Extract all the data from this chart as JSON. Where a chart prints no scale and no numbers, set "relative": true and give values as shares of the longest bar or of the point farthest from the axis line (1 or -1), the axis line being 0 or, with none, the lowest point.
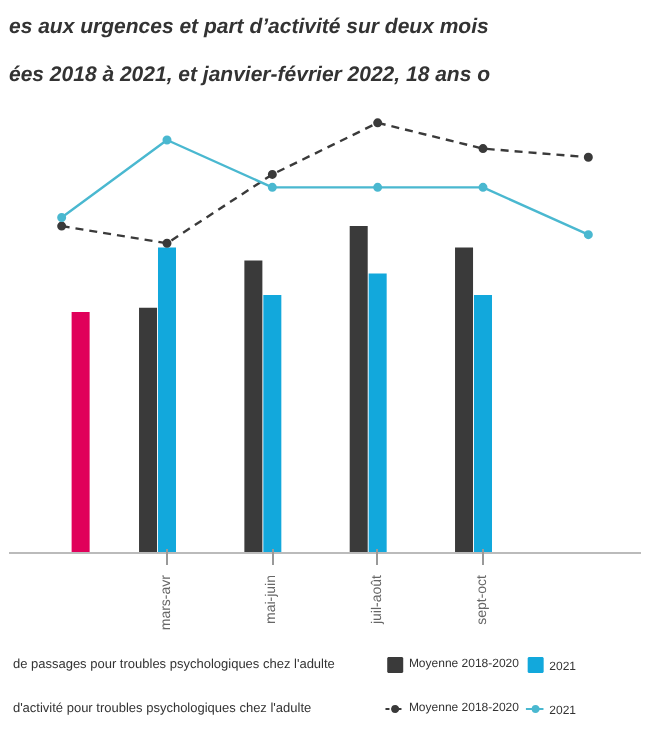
{
  "chart_data": {
    "type": "bar",
    "title": "es aux urgences et part d’activité sur deux mois",
    "subtitle": "ées 2018 à 2021, et janvier-février 2022, 18 ans o",
    "categories": [
      null,
      "mars-avr",
      "mai-juin",
      "juil-août",
      "sept-oct",
      null
    ],
    "relative": true,
    "legend": "bottom",
    "legend_title": "de passages pour troubles psychologiques chez l'adulte",
    "annotations": [
      "d'activité pour troubles psychologiques chez l'adulte"
    ],
    "marker": "circle",
    "series": [
      {
        "name": "Moyenne 2018-2020",
        "color": "#3a3a3a",
        "values": [
          null,
          0.57,
          0.68,
          0.76,
          0.71,
          null
        ]
      },
      {
        "name": "2021",
        "color": "#12a8dc",
        "values": [
          null,
          0.71,
          0.6,
          0.65,
          0.6,
          null
        ]
      },
      {
        "color": "#e0005a",
        "values": [
          0.56,
          null,
          null,
          null,
          null,
          null
        ]
      },
      {
        "name": "Moyenne 2018-2020",
        "type": "line",
        "line_style": "dashed",
        "color": "#3a3a3a",
        "values": [
          0.76,
          0.72,
          0.88,
          1.0,
          0.94,
          0.92
        ]
      },
      {
        "name": "2021",
        "type": "line",
        "line_style": "solid",
        "color": "#4ab8d0",
        "values": [
          0.78,
          0.96,
          0.85,
          0.85,
          0.85,
          0.74
        ]
      }
    ]
  }
}
